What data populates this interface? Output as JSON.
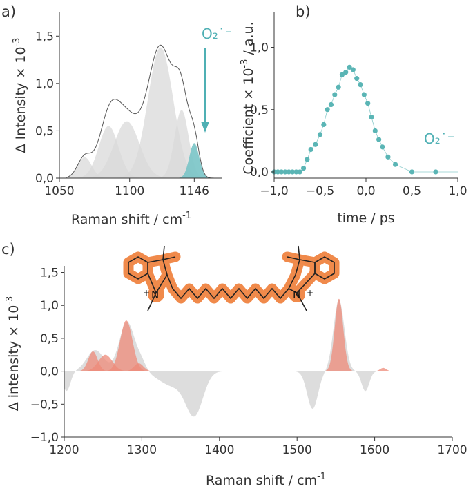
{
  "chart_data": [
    {
      "panel": "a)",
      "type": "area",
      "xlabel": "Raman shift / cm",
      "xlabel_sup": "-1",
      "ylabel": "Δ Intensity × 10",
      "ylabel_sup": "-3",
      "xlim": [
        1050,
        1166
      ],
      "ylim": [
        0,
        1.75
      ],
      "xticks": [
        "1050",
        "1100",
        "1146"
      ],
      "xtick_values": [
        1050,
        1100,
        1146
      ],
      "yticks": [
        "0,0",
        "0,5",
        "1,0",
        "1,5"
      ],
      "ytick_values": [
        0,
        0.5,
        1.0,
        1.5
      ],
      "annotation": "O₂˙⁻",
      "colors": {
        "envelope": "#555555",
        "components": "#d9d9d9",
        "highlight": "#79c4c7",
        "annotation": "#4fb0b4"
      },
      "series": [
        {
          "center": 1068,
          "amplitude": 0.22,
          "width": 5
        },
        {
          "center": 1085,
          "amplitude": 0.55,
          "width": 7
        },
        {
          "center": 1098,
          "amplitude": 0.6,
          "width": 9
        },
        {
          "center": 1122,
          "amplitude": 1.38,
          "width": 9
        },
        {
          "center": 1137,
          "amplitude": 0.72,
          "width": 5
        },
        {
          "center": 1146,
          "amplitude": 0.37,
          "width": 3.5,
          "highlight": true
        }
      ]
    },
    {
      "panel": "b)",
      "type": "scatter",
      "xlabel": "time  / ps",
      "ylabel": "Coefficient × 10",
      "ylabel_sup": "-3",
      "ylabel_suffix": " / a.u.",
      "xlim": [
        -1.0,
        1.0
      ],
      "ylim": [
        -0.05,
        1.28
      ],
      "xticks": [
        "−1,0",
        "−0,5",
        "0,0",
        "0,5",
        "1,0"
      ],
      "xtick_values": [
        -1.0,
        -0.5,
        0.0,
        0.5,
        1.0
      ],
      "yticks": [
        "0,0",
        "0,5",
        "1,0"
      ],
      "ytick_values": [
        0,
        0.5,
        1.0
      ],
      "annotation": "O₂˙⁻",
      "colors": {
        "points": "#5ab5b5",
        "line": "#5ab5b5"
      },
      "x": [
        -1.0,
        -0.96,
        -0.92,
        -0.88,
        -0.84,
        -0.8,
        -0.76,
        -0.72,
        -0.68,
        -0.64,
        -0.6,
        -0.55,
        -0.5,
        -0.46,
        -0.42,
        -0.38,
        -0.34,
        -0.3,
        -0.26,
        -0.22,
        -0.18,
        -0.14,
        -0.1,
        -0.06,
        -0.02,
        0.02,
        0.06,
        0.1,
        0.14,
        0.18,
        0.24,
        0.32,
        0.5,
        0.76
      ],
      "y": [
        0.0,
        0.0,
        0.0,
        0.0,
        0.0,
        0.0,
        0.0,
        0.0,
        0.03,
        0.1,
        0.18,
        0.22,
        0.3,
        0.38,
        0.5,
        0.54,
        0.62,
        0.68,
        0.78,
        0.8,
        0.84,
        0.82,
        0.75,
        0.7,
        0.62,
        0.55,
        0.44,
        0.33,
        0.26,
        0.2,
        0.12,
        0.06,
        0.0,
        0.0
      ]
    },
    {
      "panel": "c)",
      "type": "area",
      "xlabel": "Raman shift / cm",
      "xlabel_sup": "-1",
      "ylabel": "Δ intensity × 10",
      "ylabel_sup": "-3",
      "xlim": [
        1200,
        1700
      ],
      "ylim": [
        -1.0,
        1.6
      ],
      "xticks": [
        "1200",
        "1300",
        "1400",
        "1500",
        "1600",
        "1700"
      ],
      "xtick_values": [
        1200,
        1300,
        1400,
        1500,
        1600,
        1700
      ],
      "yticks": [
        "−1,0",
        "−0,5",
        "0,0",
        "0,5",
        "1,0",
        "1,5"
      ],
      "ytick_values": [
        -1.0,
        -0.5,
        0.0,
        0.5,
        1.0,
        1.5
      ],
      "colors": {
        "measured": "#d9d9d9",
        "fit": "#e8604a",
        "fit_fill": "#ed8a78",
        "molecule": "#f08a4b"
      },
      "labels": {
        "n_left": "N",
        "n_right": "N",
        "plus": "+"
      },
      "measured_components": [
        {
          "center": 1203,
          "amplitude": -0.3,
          "width": 5
        },
        {
          "center": 1240,
          "amplitude": 0.32,
          "width": 11
        },
        {
          "center": 1281,
          "amplitude": 0.75,
          "width": 10
        },
        {
          "center": 1300,
          "amplitude": 0.12,
          "width": 6
        },
        {
          "center": 1340,
          "amplitude": -0.22,
          "width": 18
        },
        {
          "center": 1368,
          "amplitude": -0.62,
          "width": 11
        },
        {
          "center": 1520,
          "amplitude": -0.57,
          "width": 7
        },
        {
          "center": 1554,
          "amplitude": 1.08,
          "width": 7
        },
        {
          "center": 1588,
          "amplitude": -0.3,
          "width": 5
        }
      ],
      "fit_components": [
        {
          "center": 1237,
          "amplitude": 0.3,
          "width": 6
        },
        {
          "center": 1253,
          "amplitude": 0.25,
          "width": 9
        },
        {
          "center": 1280,
          "amplitude": 0.77,
          "width": 8
        },
        {
          "center": 1296,
          "amplitude": 0.12,
          "width": 6
        },
        {
          "center": 1554,
          "amplitude": 1.1,
          "width": 5.5
        },
        {
          "center": 1611,
          "amplitude": 0.05,
          "width": 4
        }
      ]
    }
  ]
}
